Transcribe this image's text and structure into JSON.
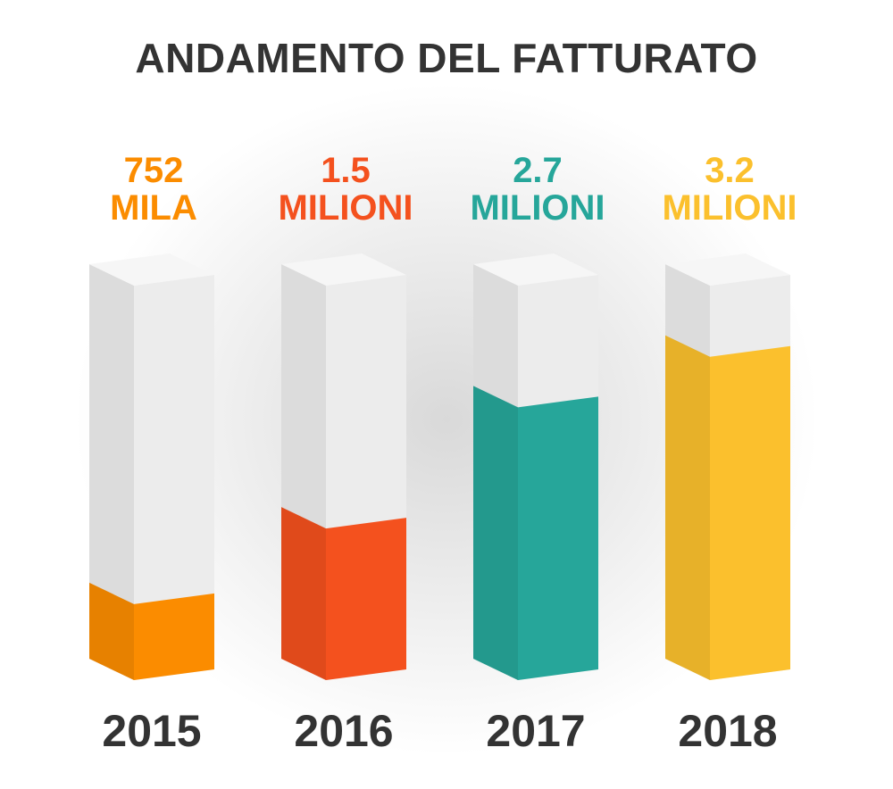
{
  "chart_data": {
    "type": "bar",
    "title": "ANDAMENTO DEL FATTURATO",
    "categories": [
      "2015",
      "2016",
      "2017",
      "2018"
    ],
    "values": [
      752000,
      1500000,
      2700000,
      3200000
    ],
    "value_labels": [
      "752 MILA",
      "1.5 MILIONI",
      "2.7 MILIONI",
      "3.2 MILIONI"
    ],
    "colors": [
      "#fb8c00",
      "#f4511e",
      "#26a69a",
      "#fbc02d"
    ]
  }
}
